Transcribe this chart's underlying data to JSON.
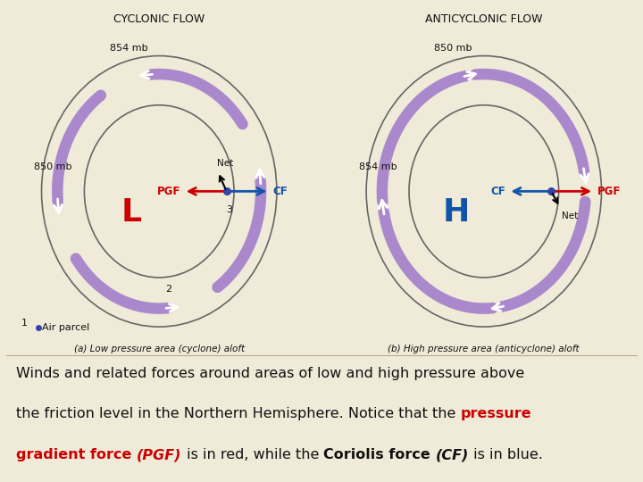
{
  "bg_color": "#ede8d8",
  "panel_bg": "#e8e0c8",
  "caption_bg": "#f0ead8",
  "left_title": "CYCLONIC FLOW",
  "right_title": "ANTICYCLONIC FLOW",
  "left_label_a": "(a) Low pressure area (cyclone) aloft",
  "right_label_b": "(b) High pressure area (anticyclone) aloft",
  "left_center_label": "L",
  "right_center_label": "H",
  "left_outer_mb": "854 mb",
  "left_inner_mb": "850 mb",
  "right_outer_mb": "850 mb",
  "right_inner_mb": "854 mb",
  "pgf_color": "#cc0000",
  "cf_color": "#1155aa",
  "arc_color": "#aa88cc",
  "circle_color": "#666666",
  "text_color": "#111111",
  "dot_color": "#3344aa",
  "caption_line1": "Winds and related forces around areas of low and high pressure above",
  "caption_line2_black": "the friction level in the Northern Hemisphere. Notice that the ",
  "caption_line2_red": "pressure",
  "caption_line3_red1": "gradient force ",
  "caption_line3_red2": "(PGF)",
  "caption_line3_black": " is in red, while the ",
  "caption_line3_bold1": "Coriolis force ",
  "caption_line3_bold2": "(CF)",
  "caption_line3_end": " is in blue.",
  "net_label": "Net",
  "air_parcel": "Air parcel"
}
